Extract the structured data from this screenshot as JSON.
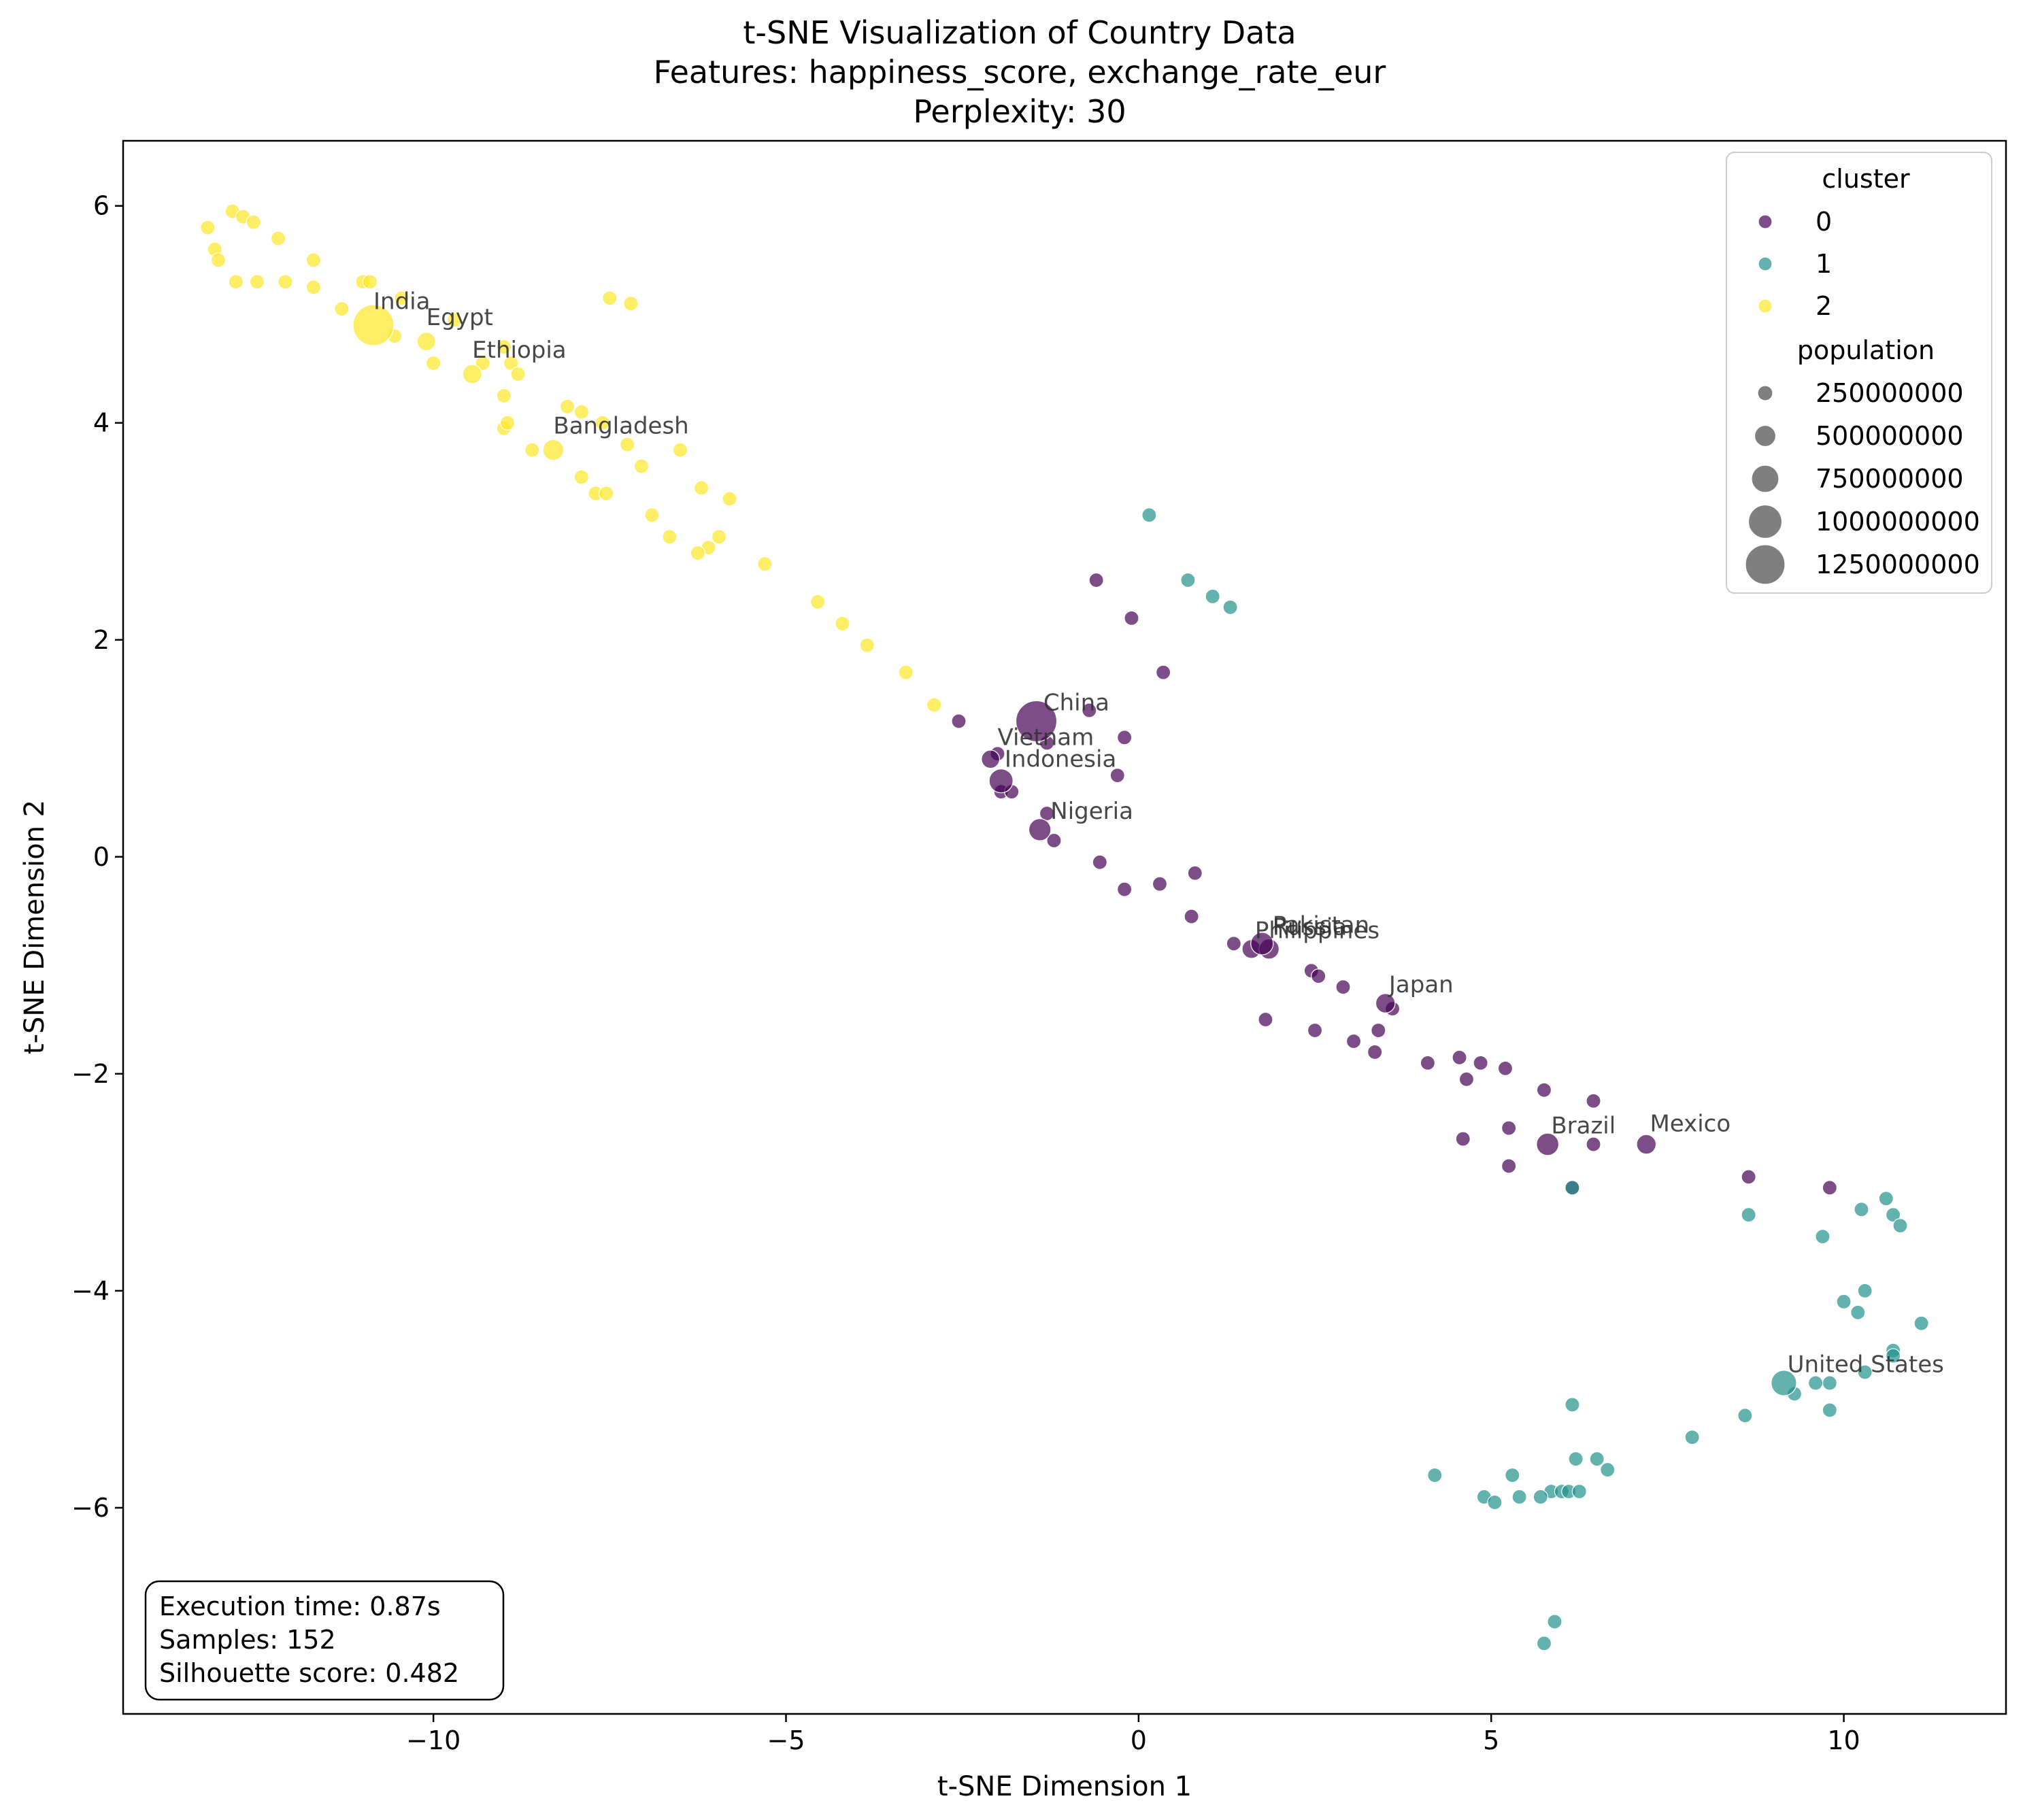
{
  "chart_data": {
    "type": "scatter",
    "title": "t-SNE Visualization of Country Data",
    "subtitle_lines": [
      "Features: happiness_score, exchange_rate_eur",
      "Perplexity: 30"
    ],
    "xlabel": "t-SNE Dimension 1",
    "ylabel": "t-SNE Dimension 2",
    "xlim": [
      -14.4,
      12.3
    ],
    "ylim": [
      -7.9,
      6.6
    ],
    "x_ticks": [
      -10,
      -5,
      0,
      5,
      10
    ],
    "y_ticks": [
      -6,
      -4,
      -2,
      0,
      2,
      4,
      6
    ],
    "x_tick_labels": [
      "−10",
      "−5",
      "0",
      "5",
      "10"
    ],
    "y_tick_labels": [
      "−6",
      "−4",
      "−2",
      "0",
      "2",
      "4",
      "6"
    ],
    "grid": false,
    "legend_position": "top-right",
    "legend": {
      "cluster_title": "cluster",
      "clusters": [
        {
          "label": "0",
          "color": "#440154"
        },
        {
          "label": "1",
          "color": "#21918c"
        },
        {
          "label": "2",
          "color": "#fde725"
        }
      ],
      "size_title": "population",
      "sizes": [
        {
          "label": "250000000",
          "value": 250000000
        },
        {
          "label": "500000000",
          "value": 500000000
        },
        {
          "label": "750000000",
          "value": 750000000
        },
        {
          "label": "1000000000",
          "value": 1000000000
        },
        {
          "label": "1250000000",
          "value": 1250000000
        }
      ]
    },
    "stats": [
      "Execution time: 0.87s",
      "Samples: 152",
      "Silhouette score: 0.482"
    ],
    "series": [
      {
        "cluster": 2,
        "color": "#fde725",
        "points": [
          [
            -13.2,
            5.8
          ],
          [
            -13.1,
            5.6
          ],
          [
            -13.05,
            5.5
          ],
          [
            -12.85,
            5.95
          ],
          [
            -12.7,
            5.9
          ],
          [
            -12.55,
            5.85
          ],
          [
            -12.2,
            5.7
          ],
          [
            -12.8,
            5.3
          ],
          [
            -12.5,
            5.3
          ],
          [
            -12.1,
            5.3
          ],
          [
            -11.7,
            5.5
          ],
          [
            -11.7,
            5.25
          ],
          [
            -11.3,
            5.05
          ],
          [
            -11.0,
            5.3
          ],
          [
            -10.9,
            5.3
          ],
          [
            -10.45,
            5.15
          ],
          [
            -10.55,
            4.8
          ],
          [
            -10.0,
            4.55
          ],
          [
            -9.7,
            4.95
          ],
          [
            -9.3,
            4.55
          ],
          [
            -9.0,
            4.7
          ],
          [
            -8.9,
            4.55
          ],
          [
            -8.8,
            4.45
          ],
          [
            -9.0,
            4.25
          ],
          [
            -9.0,
            3.95
          ],
          [
            -8.95,
            4.0
          ],
          [
            -8.6,
            3.75
          ],
          [
            -8.1,
            4.15
          ],
          [
            -7.9,
            4.1
          ],
          [
            -7.6,
            4.0
          ],
          [
            -7.9,
            3.5
          ],
          [
            -7.7,
            3.35
          ],
          [
            -7.55,
            3.35
          ],
          [
            -7.25,
            3.8
          ],
          [
            -7.05,
            3.6
          ],
          [
            -6.9,
            3.15
          ],
          [
            -6.65,
            2.95
          ],
          [
            -6.5,
            3.75
          ],
          [
            -6.2,
            3.4
          ],
          [
            -5.95,
            2.95
          ],
          [
            -6.1,
            2.85
          ],
          [
            -6.25,
            2.8
          ],
          [
            -5.8,
            3.3
          ],
          [
            -5.3,
            2.7
          ],
          [
            -4.55,
            2.35
          ],
          [
            -4.2,
            2.15
          ],
          [
            -3.85,
            1.95
          ],
          [
            -3.3,
            1.7
          ],
          [
            -2.9,
            1.4
          ],
          [
            -7.5,
            5.15
          ],
          [
            -7.2,
            5.1
          ]
        ],
        "populations": [
          3,
          3,
          3,
          3,
          3,
          3,
          3,
          3,
          3,
          3,
          3,
          3,
          3,
          3,
          3,
          3,
          3,
          3,
          3,
          3,
          3,
          3,
          3,
          3,
          3,
          3,
          3,
          3,
          3,
          3,
          3,
          3,
          3,
          3,
          3,
          3,
          3,
          3,
          3,
          3,
          3,
          3,
          3,
          3,
          3,
          3,
          3,
          3,
          3,
          3,
          3
        ]
      },
      {
        "cluster": 0,
        "color": "#440154",
        "points": [
          [
            -0.6,
            2.55
          ],
          [
            -0.1,
            2.2
          ],
          [
            0.35,
            1.7
          ],
          [
            -2.55,
            1.25
          ],
          [
            -0.7,
            1.35
          ],
          [
            -0.2,
            1.1
          ],
          [
            -1.3,
            1.05
          ],
          [
            -1.95,
            0.6
          ],
          [
            -1.8,
            0.6
          ],
          [
            -0.3,
            0.75
          ],
          [
            -1.3,
            0.4
          ],
          [
            -1.2,
            0.15
          ],
          [
            -0.55,
            -0.05
          ],
          [
            -0.2,
            -0.3
          ],
          [
            0.3,
            -0.25
          ],
          [
            0.8,
            -0.15
          ],
          [
            0.75,
            -0.55
          ],
          [
            1.35,
            -0.8
          ],
          [
            2.45,
            -1.05
          ],
          [
            2.55,
            -1.1
          ],
          [
            2.9,
            -1.2
          ],
          [
            1.8,
            -1.5
          ],
          [
            2.5,
            -1.6
          ],
          [
            3.05,
            -1.7
          ],
          [
            3.4,
            -1.6
          ],
          [
            3.35,
            -1.8
          ],
          [
            3.6,
            -1.4
          ],
          [
            4.1,
            -1.9
          ],
          [
            4.55,
            -1.85
          ],
          [
            4.85,
            -1.9
          ],
          [
            5.2,
            -1.95
          ],
          [
            4.65,
            -2.05
          ],
          [
            5.75,
            -2.15
          ],
          [
            6.45,
            -2.25
          ],
          [
            4.6,
            -2.6
          ],
          [
            5.25,
            -2.5
          ],
          [
            6.45,
            -2.65
          ],
          [
            5.25,
            -2.85
          ],
          [
            6.15,
            -3.05
          ],
          [
            8.65,
            -2.95
          ],
          [
            9.8,
            -3.05
          ],
          [
            -2.0,
            0.95
          ]
        ],
        "populations": [
          3,
          3,
          3,
          3,
          3,
          3,
          3,
          3,
          3,
          3,
          3,
          3,
          3,
          3,
          3,
          3,
          3,
          3,
          3,
          3,
          3,
          3,
          3,
          3,
          3,
          3,
          3,
          3,
          3,
          3,
          3,
          3,
          3,
          3,
          3,
          3,
          3,
          3,
          3,
          3,
          3,
          3
        ]
      },
      {
        "cluster": 1,
        "color": "#21918c",
        "points": [
          [
            0.15,
            3.15
          ],
          [
            0.7,
            2.55
          ],
          [
            1.05,
            2.4
          ],
          [
            1.3,
            2.3
          ],
          [
            8.65,
            -3.3
          ],
          [
            9.7,
            -3.5
          ],
          [
            10.25,
            -3.25
          ],
          [
            10.6,
            -3.15
          ],
          [
            10.7,
            -3.3
          ],
          [
            10.8,
            -3.4
          ],
          [
            10.3,
            -4.0
          ],
          [
            10.0,
            -4.1
          ],
          [
            10.2,
            -4.2
          ],
          [
            11.1,
            -4.3
          ],
          [
            10.7,
            -4.55
          ],
          [
            10.7,
            -4.6
          ],
          [
            10.3,
            -4.75
          ],
          [
            9.8,
            -4.85
          ],
          [
            9.6,
            -4.85
          ],
          [
            9.3,
            -4.95
          ],
          [
            9.8,
            -5.1
          ],
          [
            8.6,
            -5.15
          ],
          [
            7.85,
            -5.35
          ],
          [
            6.15,
            -5.05
          ],
          [
            6.2,
            -5.55
          ],
          [
            6.5,
            -5.55
          ],
          [
            6.65,
            -5.65
          ],
          [
            5.3,
            -5.7
          ],
          [
            4.2,
            -5.7
          ],
          [
            5.85,
            -5.85
          ],
          [
            5.7,
            -5.9
          ],
          [
            6.0,
            -5.85
          ],
          [
            6.1,
            -5.85
          ],
          [
            6.25,
            -5.85
          ],
          [
            5.4,
            -5.9
          ],
          [
            4.9,
            -5.9
          ],
          [
            5.05,
            -5.95
          ],
          [
            5.9,
            -7.05
          ],
          [
            5.75,
            -7.25
          ],
          [
            6.15,
            -3.05
          ]
        ],
        "populations": [
          3,
          3,
          3,
          3,
          3,
          3,
          3,
          3,
          3,
          3,
          3,
          3,
          3,
          3,
          3,
          3,
          3,
          3,
          3,
          3,
          3,
          3,
          3,
          3,
          3,
          3,
          3,
          3,
          3,
          3,
          3,
          3,
          3,
          3,
          3,
          3,
          3,
          3,
          3,
          3
        ]
      }
    ],
    "labeled_points": [
      {
        "name": "India",
        "x": -10.85,
        "y": 4.9,
        "cluster": 2,
        "population": 1380000000
      },
      {
        "name": "Egypt",
        "x": -10.1,
        "y": 4.75,
        "cluster": 2,
        "population": 100000000
      },
      {
        "name": "Ethiopia",
        "x": -9.45,
        "y": 4.45,
        "cluster": 2,
        "population": 115000000
      },
      {
        "name": "Bangladesh",
        "x": -8.3,
        "y": 3.75,
        "cluster": 2,
        "population": 165000000
      },
      {
        "name": "China",
        "x": -1.45,
        "y": 1.25,
        "cluster": 0,
        "population": 1400000000
      },
      {
        "name": "Vietnam",
        "x": -2.1,
        "y": 0.9,
        "cluster": 0,
        "population": 97000000
      },
      {
        "name": "Indonesia",
        "x": -1.95,
        "y": 0.7,
        "cluster": 0,
        "population": 270000000
      },
      {
        "name": "Nigeria",
        "x": -1.4,
        "y": 0.25,
        "cluster": 0,
        "population": 206000000
      },
      {
        "name": "Philippines",
        "x": 1.6,
        "y": -0.85,
        "cluster": 0,
        "population": 110000000
      },
      {
        "name": "Russia",
        "x": 1.85,
        "y": -0.85,
        "cluster": 0,
        "population": 145000000
      },
      {
        "name": "Pakistan",
        "x": 1.75,
        "y": -0.8,
        "cluster": 0,
        "population": 220000000
      },
      {
        "name": "Japan",
        "x": 3.5,
        "y": -1.35,
        "cluster": 0,
        "population": 126000000
      },
      {
        "name": "Brazil",
        "x": 5.8,
        "y": -2.65,
        "cluster": 0,
        "population": 212000000
      },
      {
        "name": "Mexico",
        "x": 7.2,
        "y": -2.65,
        "cluster": 0,
        "population": 128000000
      },
      {
        "name": "United States",
        "x": 9.15,
        "y": -4.85,
        "cluster": 1,
        "population": 330000000
      }
    ],
    "annotations": [
      {
        "text": "India",
        "x": -10.85,
        "y": 5.05
      },
      {
        "text": "Egypt",
        "x": -10.1,
        "y": 4.9
      },
      {
        "text": "Ethiopia",
        "x": -9.45,
        "y": 4.6
      },
      {
        "text": "Bangladesh",
        "x": -8.3,
        "y": 3.9
      },
      {
        "text": "China",
        "x": -1.35,
        "y": 1.35
      },
      {
        "text": "Vietnam",
        "x": -2.0,
        "y": 1.03
      },
      {
        "text": "Indonesia",
        "x": -1.9,
        "y": 0.83
      },
      {
        "text": "Nigeria",
        "x": -1.25,
        "y": 0.35
      },
      {
        "text": "Philippines",
        "x": 1.65,
        "y": -0.75
      },
      {
        "text": "Russia",
        "x": 1.9,
        "y": -0.72
      },
      {
        "text": "Pakistan",
        "x": 1.9,
        "y": -0.7
      },
      {
        "text": "Japan",
        "x": 3.55,
        "y": -1.25
      },
      {
        "text": "Brazil",
        "x": 5.85,
        "y": -2.55
      },
      {
        "text": "Mexico",
        "x": 7.25,
        "y": -2.53
      },
      {
        "text": "United States",
        "x": 9.2,
        "y": -4.75
      }
    ]
  }
}
